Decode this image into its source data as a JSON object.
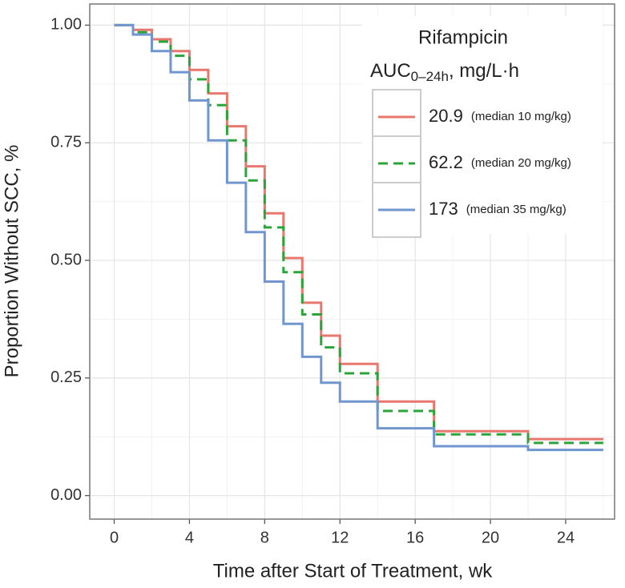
{
  "chart_data": {
    "type": "step",
    "x_label": "Time after Start of Treatment, wk",
    "y_label": "Proportion Without SCC, %",
    "legend_title": "Rifampicin",
    "legend_subtitle": {
      "main": "AUC",
      "sub": "0–24h",
      "rest": ", mg/L·h"
    },
    "legend_position": "top-right",
    "grid": true,
    "xlim": [
      -1.3,
      26.6
    ],
    "ylim": [
      -0.05,
      1.045
    ],
    "xticks": [
      0,
      4,
      8,
      12,
      16,
      20,
      24
    ],
    "x_minor_ticks": [
      2,
      6,
      10,
      14,
      18,
      22,
      26
    ],
    "yticks": [
      {
        "value": 0,
        "label": "0.00"
      },
      0.25,
      {
        "value": 0.5,
        "label": "0.50"
      },
      0.75,
      {
        "value": 1,
        "label": "1.00"
      }
    ],
    "y_minor_ticks": [
      0.125,
      0.375,
      0.625,
      0.875
    ],
    "x": [
      0,
      1,
      2,
      3,
      4,
      5,
      6,
      7,
      8,
      9,
      10,
      11,
      12,
      14,
      17,
      22,
      26
    ],
    "series": [
      {
        "name": "20.9",
        "note": "(median 10 mg/kg)",
        "color": "#e8776e",
        "dash": "solid",
        "values": [
          1.0,
          0.99,
          0.97,
          0.945,
          0.905,
          0.855,
          0.785,
          0.7,
          0.6,
          0.505,
          0.41,
          0.34,
          0.28,
          0.2,
          0.137,
          0.12,
          0.12
        ]
      },
      {
        "name": "62.2",
        "note": "(median 20 mg/kg)",
        "color": "#2aa53a",
        "dash": "dashed",
        "values": [
          1.0,
          0.985,
          0.965,
          0.935,
          0.885,
          0.83,
          0.755,
          0.67,
          0.57,
          0.475,
          0.385,
          0.315,
          0.26,
          0.18,
          0.13,
          0.112,
          0.112
        ]
      },
      {
        "name": "173",
        "note": "(median 35 mg/kg)",
        "color": "#7096d0",
        "dash": "solid",
        "values": [
          1.0,
          0.98,
          0.945,
          0.9,
          0.84,
          0.755,
          0.665,
          0.56,
          0.455,
          0.365,
          0.295,
          0.24,
          0.2,
          0.143,
          0.105,
          0.097,
          0.097
        ]
      }
    ]
  }
}
